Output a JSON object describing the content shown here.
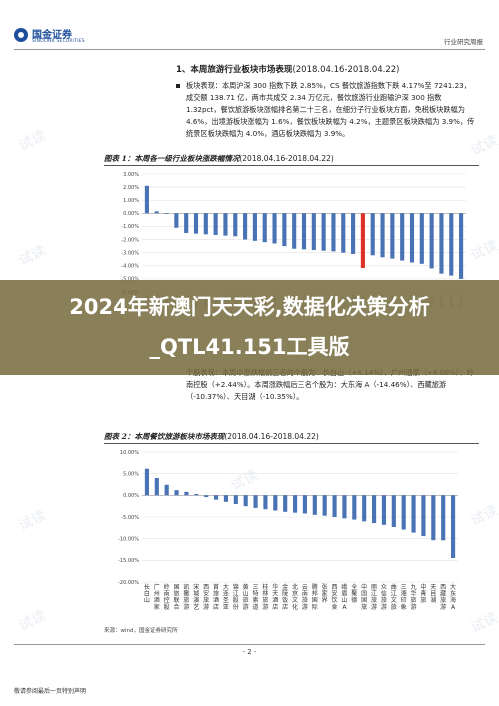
{
  "header": {
    "logo_cn": "国金证券",
    "logo_en": "SINOLINK SECURITIES",
    "report_type": "行业研究周报"
  },
  "section": {
    "number": "1、",
    "title": "本周旅游行业板块市场表现",
    "date": "(2018.04.16-2018.04.22)",
    "paragraph": "板块表现：本周沪深 300 指数下跌 2.85%，CS 餐饮旅游指数下跌 4.17%至 7241.23，成交额 138.71 亿，两市共成交 2.34 万亿元，餐饮旅游行业跑输沪深 300 指数 1.32pct，餐饮旅游板块涨幅排名第二十三名，在细分子行业板块方面，免税板块跌幅为 4.6%，出境游板块涨幅为 1.6%，餐饮板块跌幅为 4.2%，主题景区板块跌幅为 3.9%，传统景区板块跌幅为 4.0%，酒店板块跌幅为 3.9%。"
  },
  "figure1": {
    "label": "图表 1：",
    "title": "本周各一级行业板块涨跌幅情况",
    "date": "(2018.04.16-2018.04.22)"
  },
  "figure2": {
    "label": "图表 2：",
    "title": "本周餐饮旅游板块市场表现",
    "date": "(2018.04.16-2018.04.22)"
  },
  "mid_paragraph": "个股表现：本周中涨跌幅前三名的个股为：长白山（+6.14%）、广州酒家（+4.00%）、岭南控股（+2.44%）。本周涨跌幅后三名个股为：大东海 A（-14.46%）、西藏旅游（-10.37%）、天目湖（-10.35%）。",
  "source": "来源：wind，国金证券研究所",
  "footer": {
    "page": "- 2 -",
    "note": "敬请参阅最后一页特别声明"
  },
  "banner": {
    "title": "2024年新澳门天天彩,数据化决策分析_QTL41.151工具版"
  },
  "watermark_text": "试读",
  "colors": {
    "bar_blue": "#4a73b5",
    "bar_red": "#e0302a",
    "brand_blue": "#1d4f9c"
  },
  "chart_data": [
    {
      "type": "bar",
      "title": "本周各一级行业板块涨跌幅情况",
      "ylim": [
        -6,
        3
      ],
      "yticks": [
        "3.00%",
        "2.00%",
        "1.00%",
        "0.00%",
        "-1.00%",
        "-2.00%",
        "-3.00%",
        "-4.00%",
        "-5.00%",
        "-6.00%"
      ],
      "ytick_values": [
        3,
        2,
        1,
        0,
        -1,
        -2,
        -3,
        -4,
        -5,
        -6
      ],
      "values": [
        2.1,
        0.15,
        -0.05,
        -1.1,
        -1.5,
        -1.55,
        -1.6,
        -1.65,
        -1.7,
        -1.75,
        -2.0,
        -2.1,
        -2.2,
        -2.3,
        -2.5,
        -2.7,
        -2.75,
        -2.8,
        -2.85,
        -2.9,
        -3.0,
        -3.1,
        -4.17,
        -3.2,
        -3.35,
        -3.45,
        -3.6,
        -3.75,
        -3.85,
        -4.2,
        -4.6,
        -4.75,
        -5.0
      ],
      "highlight_index": 22,
      "grid": true
    },
    {
      "type": "bar",
      "title": "本周餐饮旅游板块市场表现",
      "ylim": [
        -20,
        10
      ],
      "yticks": [
        "10.00%",
        "5.00%",
        "0.00%",
        "-5.00%",
        "-10.00%",
        "-15.00%",
        "-20.00%"
      ],
      "ytick_values": [
        10,
        5,
        0,
        -5,
        -10,
        -15,
        -20
      ],
      "categories": [
        "长白山",
        "广州酒家",
        "岭南控股",
        "国旅联合",
        "凯撒旅游",
        "宋城演艺",
        "西安旅游",
        "首旅酒店",
        "大连圣亚",
        "锦江股份",
        "黄山旅游",
        "三特索道",
        "桂林旅游",
        "华天酒店",
        "金陵饭店",
        "北京文化",
        "云南旅游",
        "腾邦国际",
        "张家界",
        "西安饮食",
        "峨眉山A",
        "全聚德",
        "中国国旅",
        "丽江旅游",
        "众信旅游",
        "曲江文旅",
        "三湘印象",
        "九华旅游",
        "中青旅",
        "天目湖",
        "西藏旅游",
        "大东海A"
      ],
      "values": [
        6.14,
        4.0,
        2.44,
        1.2,
        0.8,
        0.3,
        -0.4,
        -1.0,
        -1.5,
        -2.0,
        -2.5,
        -2.9,
        -3.2,
        -3.5,
        -3.8,
        -4.0,
        -4.2,
        -4.5,
        -4.7,
        -5.0,
        -5.3,
        -5.6,
        -6.0,
        -6.4,
        -6.8,
        -7.3,
        -7.9,
        -8.6,
        -9.4,
        -10.35,
        -10.37,
        -14.46
      ],
      "grid": true
    }
  ]
}
